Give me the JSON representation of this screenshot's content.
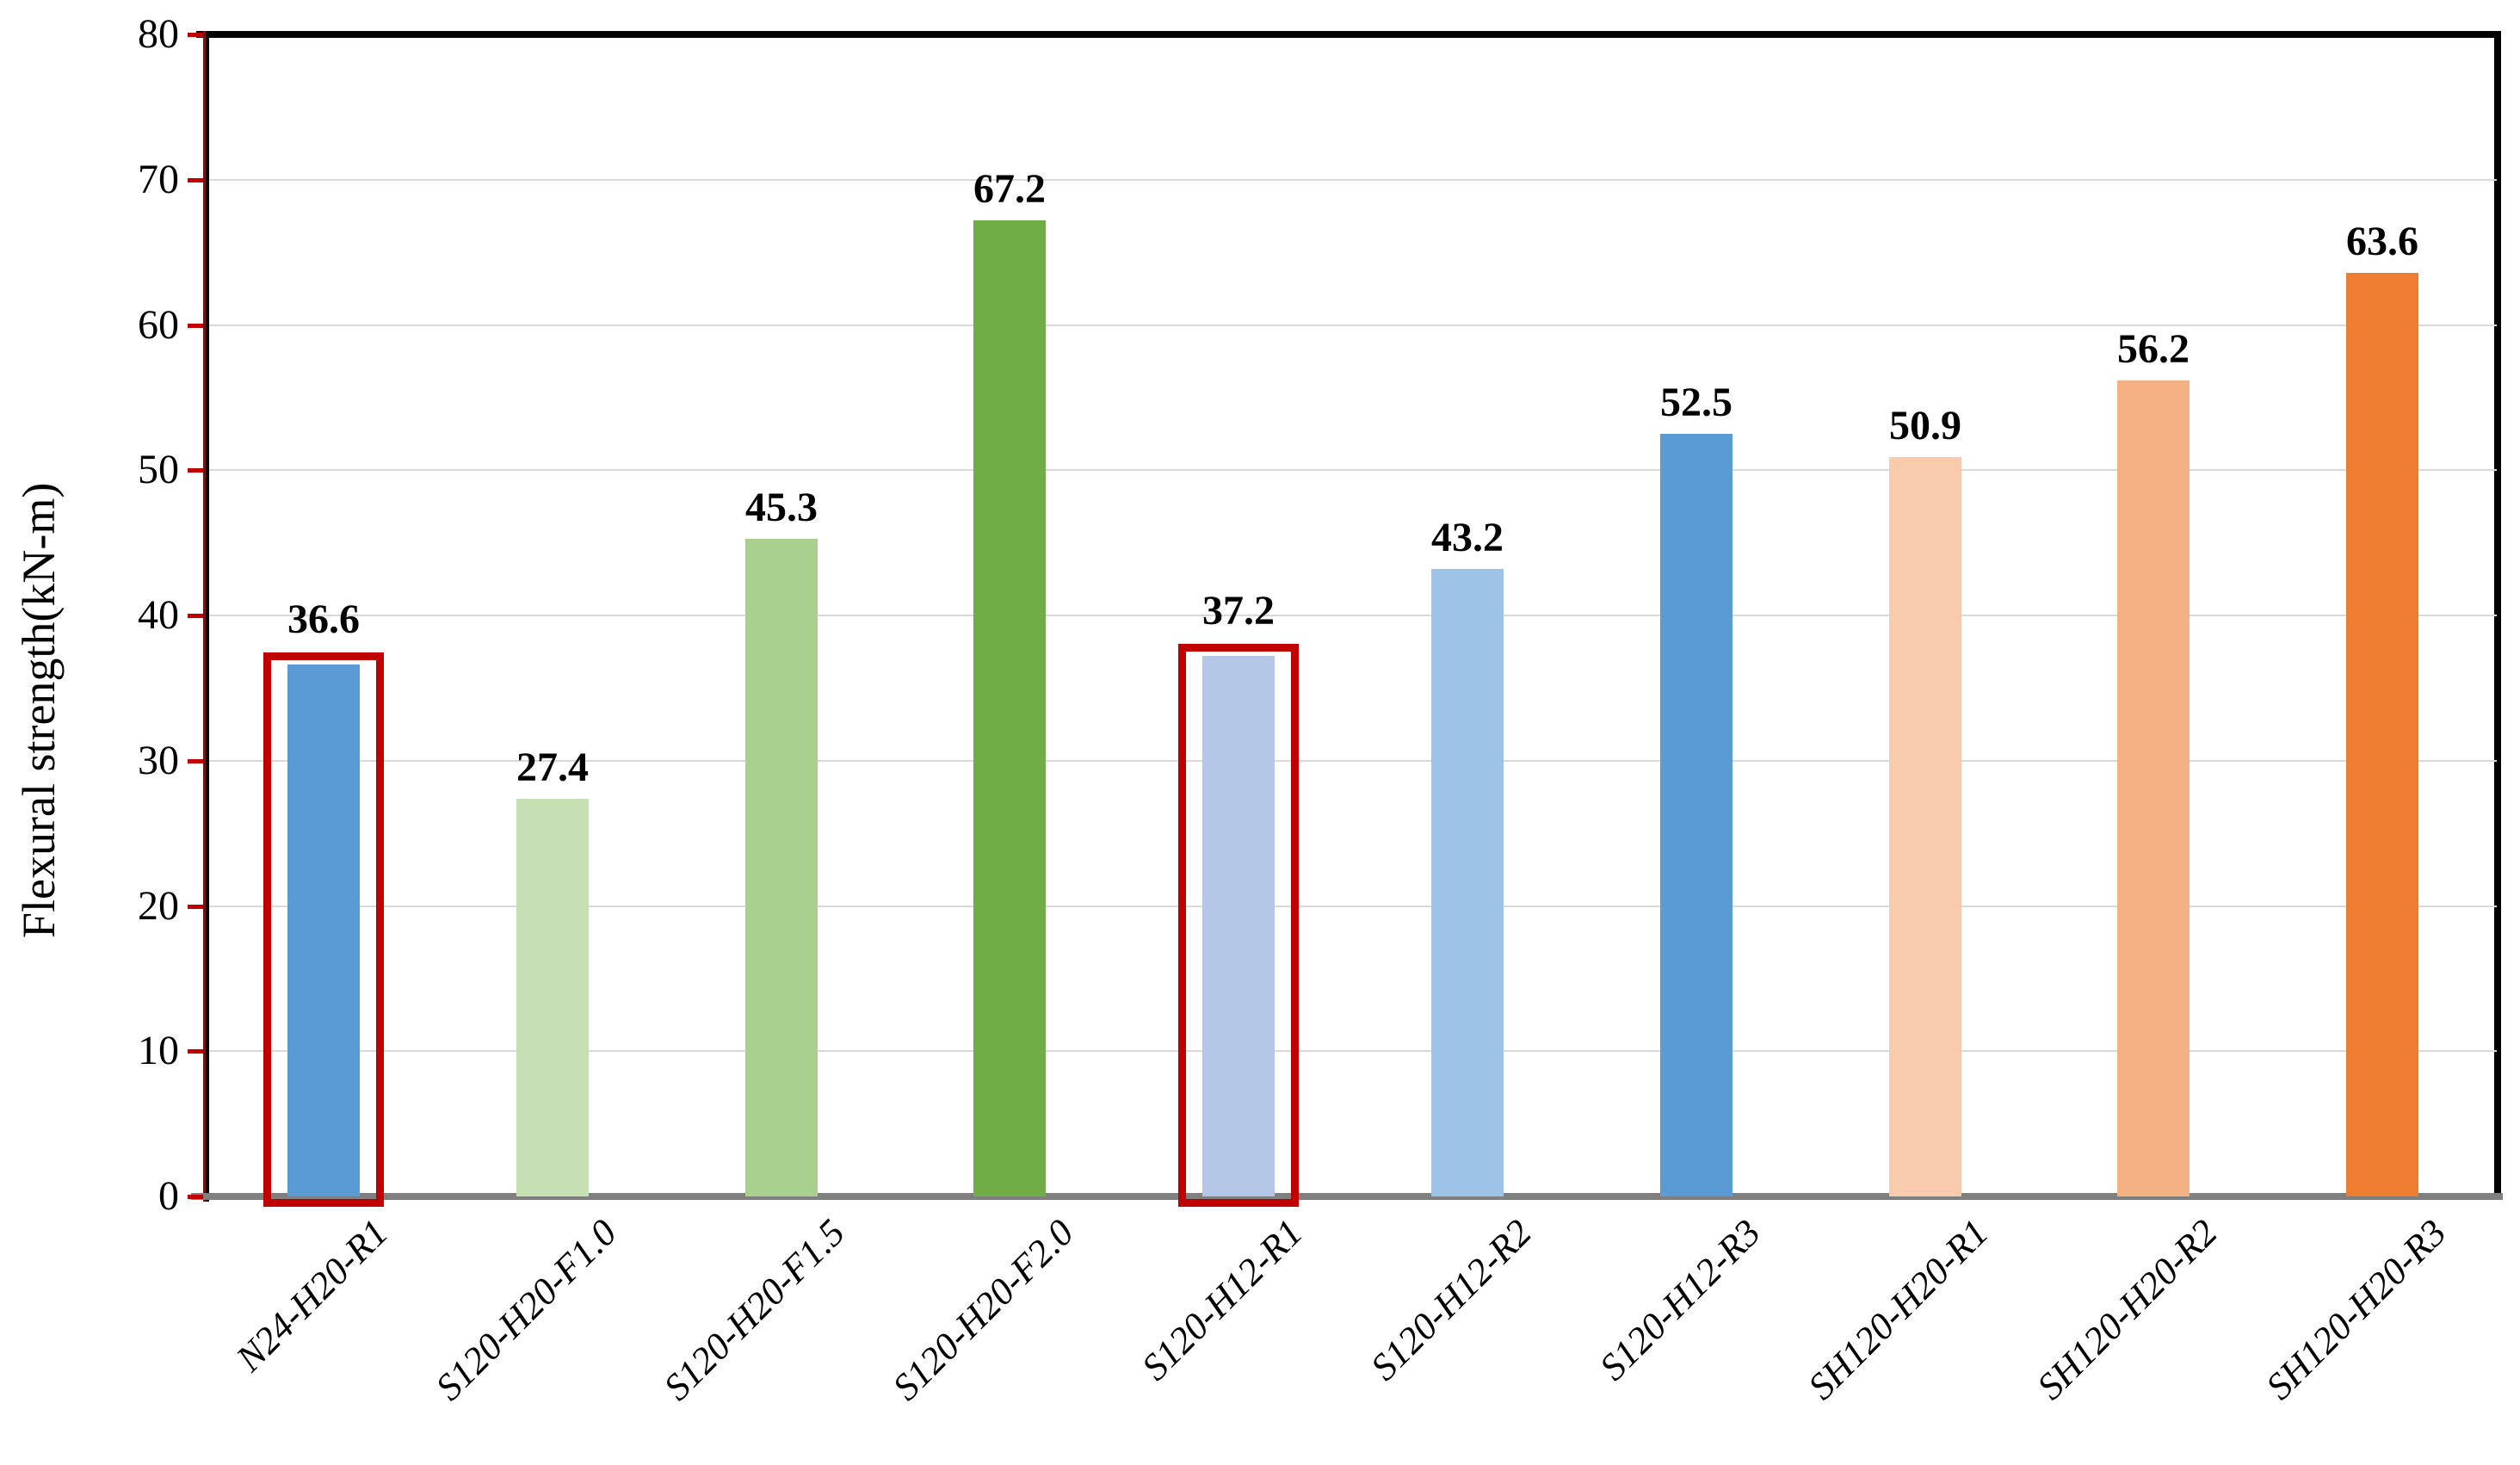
{
  "chart_data": {
    "type": "bar",
    "title": "",
    "xlabel": "",
    "ylabel": "Flexural strength(kN-m)",
    "ylim": [
      0,
      80
    ],
    "yticks": [
      0,
      10,
      20,
      30,
      40,
      50,
      60,
      70,
      80
    ],
    "grid": "horizontal",
    "legend": "none",
    "value_label_decimals": 1,
    "categories": [
      "N24-H20-R1",
      "S120-H20-F1.0",
      "S120-H20-F1.5",
      "S120-H20-F2.0",
      "S120-H12-R1",
      "S120-H12-R2",
      "S120-H12-R3",
      "SH120-H20-R1",
      "SH120-H20-R2",
      "SH120-H20-R3"
    ],
    "values": [
      36.6,
      27.4,
      45.3,
      67.2,
      37.2,
      43.2,
      52.5,
      50.9,
      56.2,
      63.6
    ],
    "bar_colors": [
      "#5B9BD5",
      "#C6E0B4",
      "#A9D08E",
      "#70AD47",
      "#B4C7E7",
      "#9DC3E6",
      "#5B9BD5",
      "#F8CBAD",
      "#F4B183",
      "#ED7D31"
    ],
    "highlighted_categories": [
      "N24-H20-R1",
      "S120-H12-R1"
    ],
    "colors": {
      "highlight_box": "#C00000",
      "gridline": "#D9D9D9",
      "x_axis": "#7F7F7F",
      "y_axis": "#000000",
      "y_axis_stripe": "#7B1010",
      "y_axis_tick": "#C00000",
      "plot_border": "#000000",
      "text": "#000000",
      "background": "#FFFFFF"
    }
  }
}
